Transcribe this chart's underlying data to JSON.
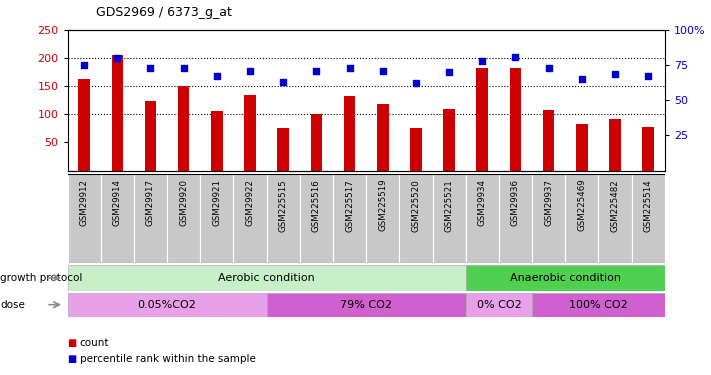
{
  "title": "GDS2969 / 6373_g_at",
  "categories": [
    "GSM29912",
    "GSM29914",
    "GSM29917",
    "GSM29920",
    "GSM29921",
    "GSM29922",
    "GSM225515",
    "GSM225516",
    "GSM225517",
    "GSM225519",
    "GSM225520",
    "GSM225521",
    "GSM29934",
    "GSM29936",
    "GSM29937",
    "GSM225469",
    "GSM225482",
    "GSM225514"
  ],
  "bar_values": [
    163,
    205,
    124,
    151,
    106,
    134,
    75,
    100,
    132,
    119,
    76,
    110,
    183,
    183,
    107,
    82,
    92,
    77
  ],
  "scatter_values": [
    75,
    80,
    73,
    73,
    67,
    71,
    63,
    71,
    73,
    71,
    62,
    70,
    78,
    81,
    73,
    65,
    69,
    67
  ],
  "bar_color": "#cc0000",
  "scatter_color": "#0000cc",
  "ylim_left": [
    0,
    250
  ],
  "ylim_right": [
    0,
    100
  ],
  "yticks_left": [
    50,
    100,
    150,
    200,
    250
  ],
  "yticks_right": [
    25,
    50,
    75,
    100
  ],
  "ytick_labels_right": [
    "25",
    "50",
    "75",
    "100%"
  ],
  "grid_values": [
    100,
    150,
    200
  ],
  "growth_protocol_label": "growth protocol",
  "dose_label": "dose",
  "aerobic_light_color": "#c8f0c8",
  "aerobic_dark_color": "#50d050",
  "dose_color_light": "#e8a0e8",
  "dose_color_dark": "#d060d0",
  "legend_count": "count",
  "legend_pct": "percentile rank within the sample",
  "bg_color": "#ffffff",
  "xtick_bg_color": "#c8c8c8"
}
